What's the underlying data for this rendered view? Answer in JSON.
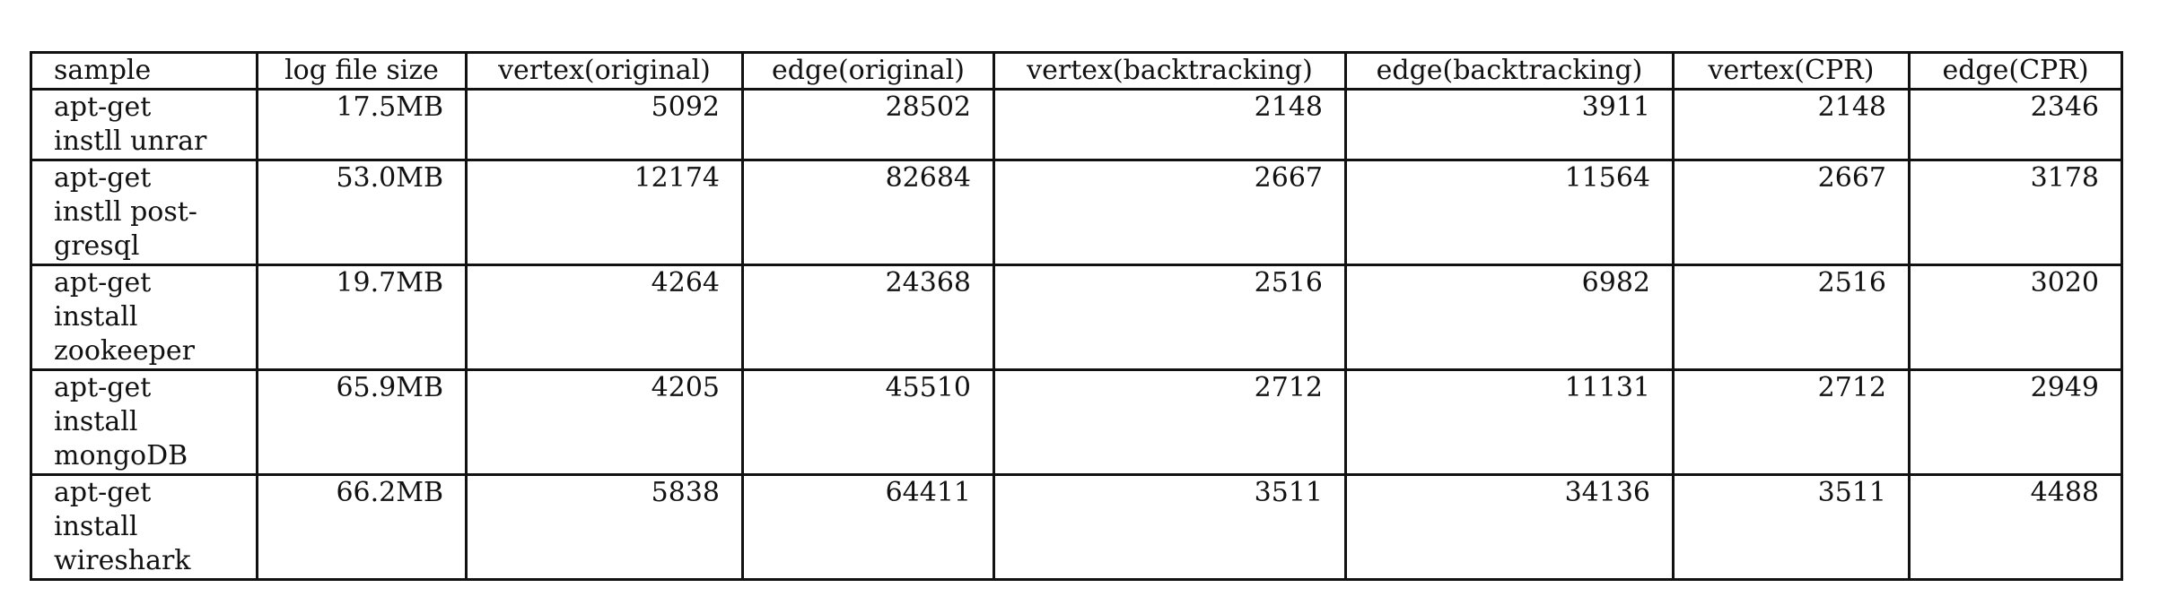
{
  "table": {
    "headers": [
      "sample",
      "log file size",
      "vertex(original)",
      "edge(original)",
      "vertex(backtracking)",
      "edge(backtracking)",
      "vertex(CPR)",
      "edge(CPR)"
    ],
    "rows": [
      {
        "sample_lines": [
          "apt-get",
          "instll unrar"
        ],
        "log_file_size": "17.5MB",
        "vertex_original": "5092",
        "edge_original": "28502",
        "vertex_backtracking": "2148",
        "edge_backtracking": "3911",
        "vertex_cpr": "2148",
        "edge_cpr": "2346"
      },
      {
        "sample_lines": [
          "apt-get",
          "instll post-",
          "gresql"
        ],
        "log_file_size": "53.0MB",
        "vertex_original": "12174",
        "edge_original": "82684",
        "vertex_backtracking": "2667",
        "edge_backtracking": "11564",
        "vertex_cpr": "2667",
        "edge_cpr": "3178"
      },
      {
        "sample_lines": [
          "apt-get",
          "install",
          "zookeeper"
        ],
        "log_file_size": "19.7MB",
        "vertex_original": "4264",
        "edge_original": "24368",
        "vertex_backtracking": "2516",
        "edge_backtracking": "6982",
        "vertex_cpr": "2516",
        "edge_cpr": "3020"
      },
      {
        "sample_lines": [
          "apt-get",
          "install",
          "mongoDB"
        ],
        "log_file_size": "65.9MB",
        "vertex_original": "4205",
        "edge_original": "45510",
        "vertex_backtracking": "2712",
        "edge_backtracking": "11131",
        "vertex_cpr": "2712",
        "edge_cpr": "2949"
      },
      {
        "sample_lines": [
          "apt-get",
          "install",
          "wireshark"
        ],
        "log_file_size": "66.2MB",
        "vertex_original": "5838",
        "edge_original": "64411",
        "vertex_backtracking": "3511",
        "edge_backtracking": "34136",
        "vertex_cpr": "3511",
        "edge_cpr": "4488"
      }
    ]
  }
}
